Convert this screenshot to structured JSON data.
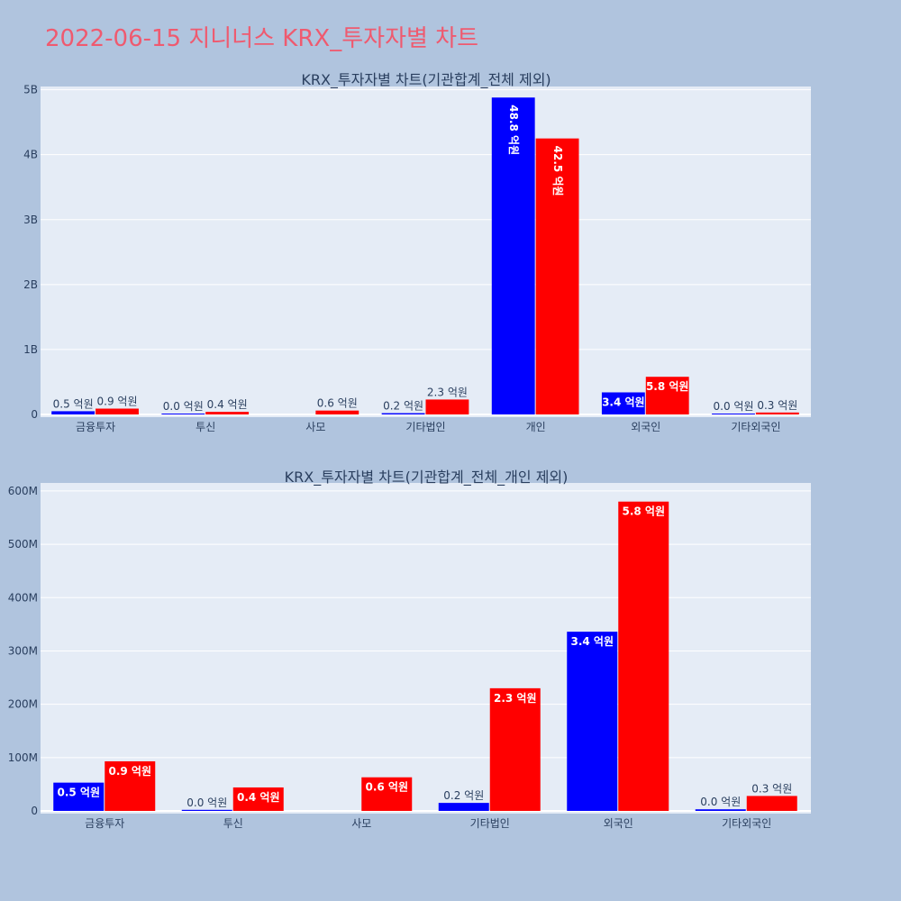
{
  "title": "2022-06-15 지니너스 KRX_투자자별 차트",
  "colors": {
    "background": "#b0c4de",
    "plot_bg": "#e5ecf6",
    "grid": "#ffffff",
    "title": "#ef5a6f",
    "text": "#2a3f5f"
  },
  "chart_data": [
    {
      "type": "bar",
      "title": "KRX_투자자별 차트(기관합계_전체 제외)",
      "categories": [
        "금융투자",
        "투신",
        "사모",
        "기타법인",
        "개인",
        "외국인",
        "기타외국인"
      ],
      "ylim": [
        0,
        5050000000
      ],
      "yticks": [
        0,
        1000000000,
        2000000000,
        3000000000,
        4000000000,
        5000000000
      ],
      "ytick_labels": [
        "0",
        "1B",
        "2B",
        "3B",
        "4B",
        "5B"
      ],
      "grid": true,
      "series": [
        {
          "color": "#0000ff",
          "values": [
            50000000,
            2000000,
            null,
            20000000,
            4880000000,
            340000000,
            3000000
          ],
          "labels": [
            "0.5 억원",
            "0.0 억원",
            "",
            "0.2 억원",
            "48.8 억원",
            "3.4 억원",
            "0.0 억원"
          ]
        },
        {
          "color": "#ff0000",
          "values": [
            90000000,
            40000000,
            60000000,
            230000000,
            4250000000,
            580000000,
            30000000
          ],
          "labels": [
            "0.9 억원",
            "0.4 억원",
            "0.6 억원",
            "2.3 억원",
            "42.5 억원",
            "5.8 억원",
            "0.3 억원"
          ]
        }
      ]
    },
    {
      "type": "bar",
      "title": "KRX_투자자별 차트(기관합계_전체_개인 제외)",
      "categories": [
        "금융투자",
        "투신",
        "사모",
        "기타법인",
        "외국인",
        "기타외국인"
      ],
      "ylim": [
        0,
        615000000
      ],
      "yticks": [
        0,
        100000000,
        200000000,
        300000000,
        400000000,
        500000000,
        600000000
      ],
      "ytick_labels": [
        "0",
        "100M",
        "200M",
        "300M",
        "400M",
        "500M",
        "600M"
      ],
      "grid": true,
      "series": [
        {
          "color": "#0000ff",
          "values": [
            53000000,
            2000000,
            null,
            15000000,
            336000000,
            3000000
          ],
          "labels": [
            "0.5 억원",
            "0.0 억원",
            "",
            "0.2 억원",
            "3.4 억원",
            "0.0 억원"
          ]
        },
        {
          "color": "#ff0000",
          "values": [
            93000000,
            44000000,
            63000000,
            230000000,
            580000000,
            28000000
          ],
          "labels": [
            "0.9 억원",
            "0.4 억원",
            "0.6 억원",
            "2.3 억원",
            "5.8 억원",
            "0.3 억원"
          ]
        }
      ]
    }
  ]
}
